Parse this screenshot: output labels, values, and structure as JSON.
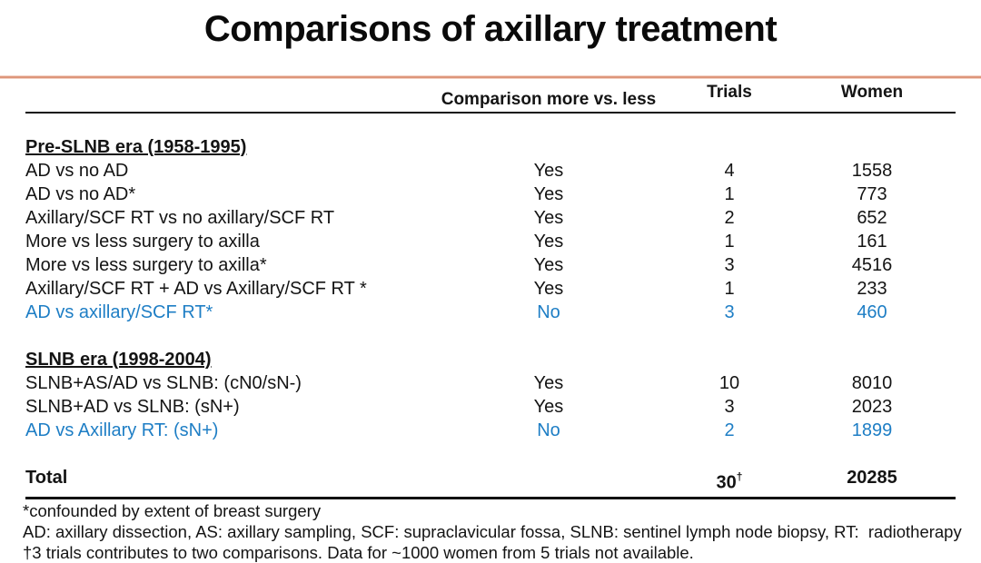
{
  "slide": {
    "title": "Comparisons of axillary treatment"
  },
  "table": {
    "headers": {
      "comparison": "Comparison more vs. less",
      "trials": "Trials",
      "women": "Women"
    },
    "sections": [
      {
        "heading": "Pre-SLNB era (1958-1995)",
        "rows": [
          {
            "label": "AD vs no AD",
            "comparison": "Yes",
            "trials": "4",
            "women": "1558",
            "highlighted": false
          },
          {
            "label": "AD vs no AD*",
            "comparison": "Yes",
            "trials": "1",
            "women": "773",
            "highlighted": false
          },
          {
            "label": "Axillary/SCF RT vs no axillary/SCF RT",
            "comparison": "Yes",
            "trials": "2",
            "women": "652",
            "highlighted": false
          },
          {
            "label": "More vs less surgery to axilla",
            "comparison": "Yes",
            "trials": "1",
            "women": "161",
            "highlighted": false
          },
          {
            "label": "More vs less surgery to axilla*",
            "comparison": "Yes",
            "trials": "3",
            "women": "4516",
            "highlighted": false
          },
          {
            "label": "Axillary/SCF RT + AD vs Axillary/SCF RT *",
            "comparison": "Yes",
            "trials": "1",
            "women": "233",
            "highlighted": false
          },
          {
            "label": "AD vs axillary/SCF RT*",
            "comparison": "No",
            "trials": "3",
            "women": "460",
            "highlighted": true
          }
        ]
      },
      {
        "heading": "SLNB era (1998-2004)",
        "rows": [
          {
            "label": "SLNB+AS/AD vs SLNB: (cN0/sN-)",
            "comparison": "Yes",
            "trials": "10",
            "women": "8010",
            "highlighted": false
          },
          {
            "label": "SLNB+AD vs SLNB: (sN+)",
            "comparison": "Yes",
            "trials": "3",
            "women": "2023",
            "highlighted": false
          },
          {
            "label": "AD vs Axillary RT: (sN+)",
            "comparison": "No",
            "trials": "2",
            "women": "1899",
            "highlighted": true
          }
        ]
      }
    ],
    "total": {
      "label": "Total",
      "trials": "30",
      "trials_sup": "†",
      "women": "20285"
    }
  },
  "footnotes": [
    "*confounded by extent of breast surgery",
    "AD: axillary dissection, AS: axillary sampling, SCF: supraclavicular fossa, SLNB: sentinel lymph node biopsy, RT:  radiotherapy",
    "†3 trials contributes to two comparisons. Data for ~1000 women from 5 trials not available."
  ],
  "colors": {
    "highlight_blue": "#1e7ec5",
    "accent_line_salmon": "#dd967a",
    "rule_black": "#111111",
    "text": "#141414"
  }
}
